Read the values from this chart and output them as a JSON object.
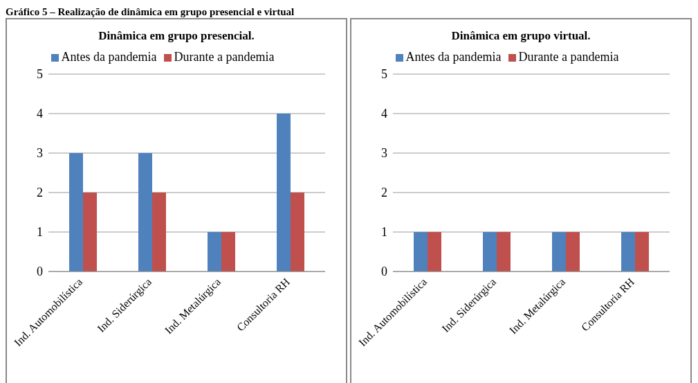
{
  "chart_data": [
    {
      "type": "bar",
      "title": "Dinâmica  em grupo  presencial.",
      "annotations": [
        "Gráfico 5 – Realização de dinâmica em grupo presencial e virtual"
      ],
      "categories": [
        "Ind. Automobilística",
        "Ind. Siderúrgica",
        "Ind. Metalúrgica",
        "Consultoria RH"
      ],
      "series": [
        {
          "name": "Antes da pandemia",
          "color": "#4f81bd",
          "values": [
            3,
            3,
            1,
            4
          ]
        },
        {
          "name": "Durante a pandemia",
          "color": "#c0504d",
          "values": [
            2,
            2,
            1,
            2
          ]
        }
      ],
      "ylim": [
        0,
        5
      ],
      "yticks": [
        0,
        1,
        2,
        3,
        4,
        5
      ],
      "grid": "y",
      "legend": "top"
    },
    {
      "type": "bar",
      "title": "Dinâmica  em grupo  virtual.",
      "categories": [
        "Ind. Automobilística",
        "Ind. Siderúrgica",
        "Ind. Metalúrgica",
        "Consultoria RH"
      ],
      "series": [
        {
          "name": "Antes da pandemia",
          "color": "#4f81bd",
          "values": [
            1,
            1,
            1,
            1
          ]
        },
        {
          "name": "Durante a pandemia",
          "color": "#c0504d",
          "values": [
            1,
            1,
            1,
            1
          ]
        }
      ],
      "ylim": [
        0,
        5
      ],
      "yticks": [
        0,
        1,
        2,
        3,
        4,
        5
      ],
      "grid": "y",
      "legend": "top"
    }
  ]
}
